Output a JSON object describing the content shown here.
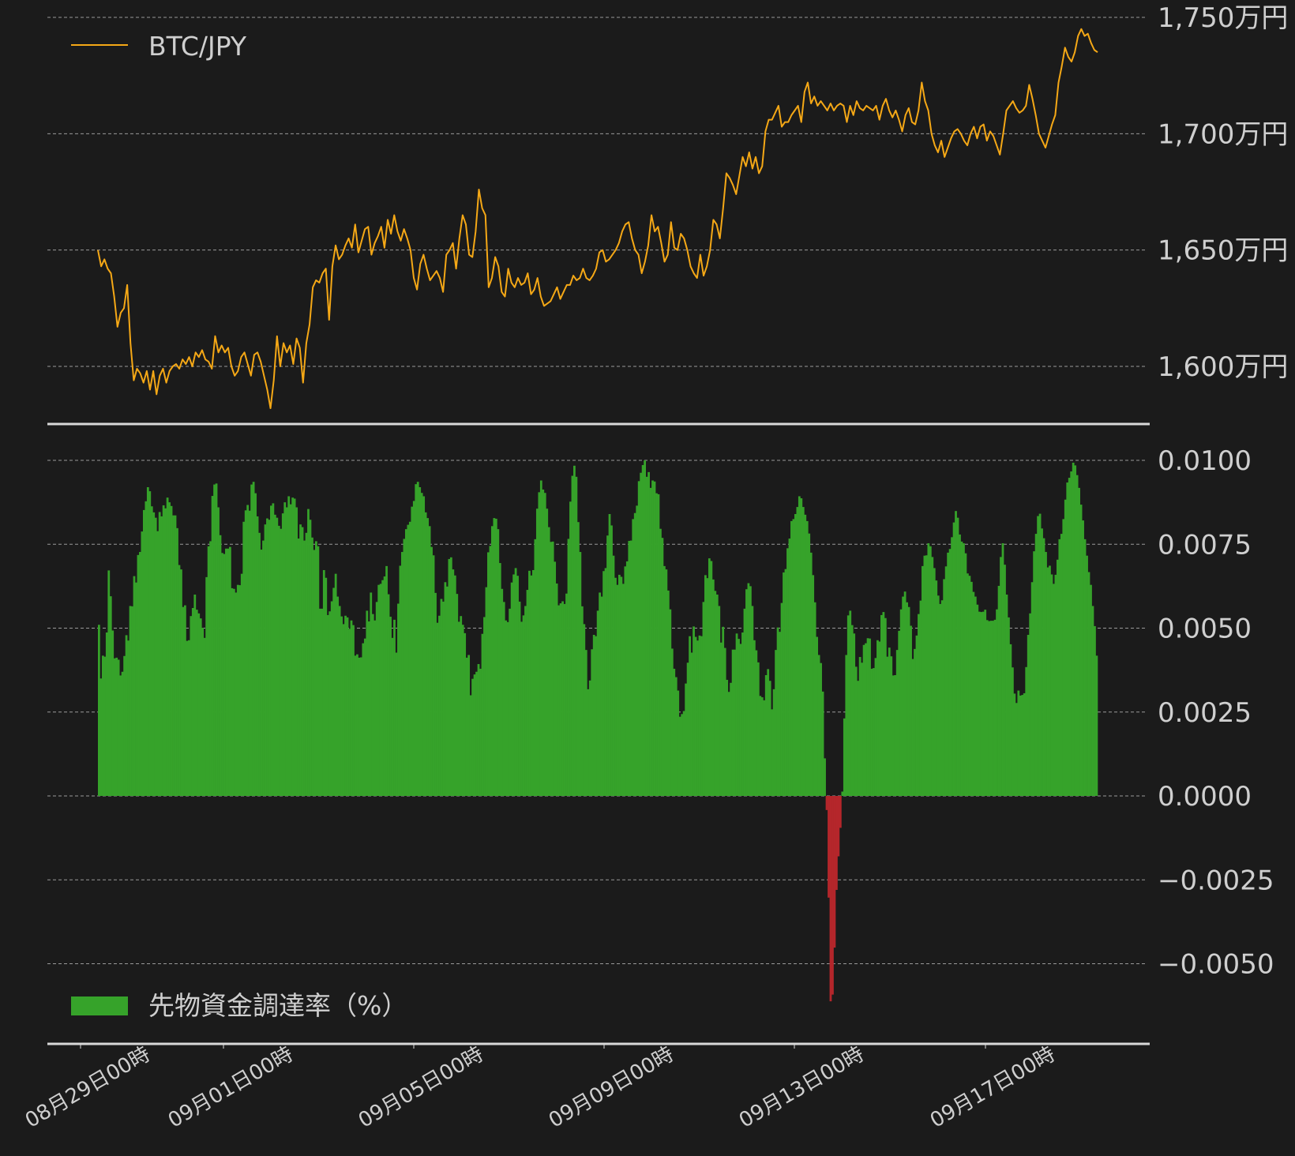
{
  "colors": {
    "background": "#1b1b1b",
    "price_line": "#f5a816",
    "positive_bar": "#36a32a",
    "negative_bar": "#b5262b",
    "axis": "#d8d8d8",
    "text": "#cfcfcf"
  },
  "chart_data": [
    {
      "type": "line",
      "legend": "BTC/JPY",
      "legend_position": "top-left",
      "y_unit": "万円",
      "ylim": [
        1580,
        1750
      ],
      "yticks": [
        1600,
        1650,
        1700,
        1750
      ],
      "ytick_labels": [
        "1,600万円",
        "1,650万円",
        "1,700万円",
        "1,750万円"
      ],
      "grid": true,
      "series": [
        {
          "values": [
            1650,
            1643,
            1646,
            1642,
            1640,
            1630,
            1617,
            1623,
            1625,
            1635,
            1610,
            1594,
            1599,
            1597,
            1593,
            1598,
            1590,
            1598,
            1588,
            1596,
            1599,
            1593,
            1598,
            1600,
            1601,
            1599,
            1603,
            1601,
            1604,
            1600,
            1606,
            1604,
            1607,
            1603,
            1602,
            1599,
            1613,
            1606,
            1609,
            1606,
            1608,
            1600,
            1596,
            1598,
            1604,
            1606,
            1601,
            1596,
            1605,
            1606,
            1602,
            1596,
            1590,
            1582,
            1594,
            1613,
            1600,
            1610,
            1606,
            1609,
            1601,
            1612,
            1608,
            1593,
            1610,
            1618,
            1634,
            1637,
            1636,
            1640,
            1642,
            1620,
            1643,
            1652,
            1646,
            1648,
            1652,
            1655,
            1651,
            1661,
            1649,
            1654,
            1659,
            1660,
            1648,
            1653,
            1656,
            1660,
            1651,
            1663,
            1657,
            1665,
            1658,
            1654,
            1659,
            1655,
            1650,
            1638,
            1633,
            1644,
            1648,
            1642,
            1637,
            1639,
            1641,
            1638,
            1632,
            1648,
            1650,
            1653,
            1642,
            1655,
            1665,
            1661,
            1648,
            1647,
            1658,
            1676,
            1668,
            1665,
            1634,
            1638,
            1647,
            1643,
            1632,
            1630,
            1642,
            1636,
            1634,
            1638,
            1635,
            1636,
            1640,
            1631,
            1633,
            1638,
            1630,
            1626,
            1627,
            1628,
            1631,
            1634,
            1629,
            1632,
            1635,
            1635,
            1639,
            1637,
            1638,
            1642,
            1638,
            1637,
            1639,
            1642,
            1649,
            1650,
            1645,
            1646,
            1648,
            1650,
            1653,
            1658,
            1661,
            1662,
            1655,
            1650,
            1648,
            1640,
            1645,
            1652,
            1665,
            1658,
            1660,
            1653,
            1645,
            1648,
            1662,
            1651,
            1650,
            1657,
            1655,
            1650,
            1643,
            1640,
            1638,
            1648,
            1639,
            1643,
            1650,
            1663,
            1661,
            1655,
            1668,
            1683,
            1681,
            1678,
            1674,
            1682,
            1690,
            1686,
            1692,
            1685,
            1690,
            1683,
            1686,
            1701,
            1706,
            1706,
            1709,
            1712,
            1703,
            1705,
            1705,
            1708,
            1710,
            1712,
            1705,
            1718,
            1722,
            1713,
            1716,
            1712,
            1714,
            1712,
            1710,
            1713,
            1710,
            1712,
            1713,
            1712,
            1705,
            1712,
            1708,
            1714,
            1711,
            1710,
            1712,
            1711,
            1710,
            1712,
            1706,
            1712,
            1715,
            1710,
            1707,
            1710,
            1706,
            1701,
            1708,
            1711,
            1705,
            1704,
            1710,
            1722,
            1714,
            1710,
            1700,
            1695,
            1692,
            1697,
            1690,
            1694,
            1698,
            1701,
            1702,
            1700,
            1697,
            1695,
            1700,
            1703,
            1698,
            1703,
            1704,
            1697,
            1701,
            1699,
            1695,
            1691,
            1700,
            1710,
            1712,
            1714,
            1711,
            1709,
            1710,
            1712,
            1721,
            1715,
            1708,
            1700,
            1697,
            1694,
            1699,
            1704,
            1708,
            1722,
            1729,
            1737,
            1733,
            1731,
            1735,
            1742,
            1745,
            1742,
            1743,
            1739,
            1736,
            1735
          ]
        }
      ]
    },
    {
      "type": "bar",
      "legend": "先物資金調達率（%）",
      "legend_position": "bottom-left",
      "ylim": [
        -0.0065,
        0.0103
      ],
      "yticks": [
        -0.005,
        -0.0025,
        0,
        0.0025,
        0.005,
        0.0075,
        0.01
      ],
      "ytick_labels": [
        "−0.0050",
        "−0.0025",
        "0.0000",
        "0.0025",
        "0.0050",
        "0.0075",
        "0.0100"
      ],
      "grid": true,
      "x_tick_labels": [
        "08月29日00時",
        "09月01日00時",
        "09月05日00時",
        "09月09日00時",
        "09月13日00時",
        "09月17日00時"
      ],
      "series": [
        {
          "values": [
            0.0051,
            0.0035,
            0.00418,
            0.00415,
            0.00487,
            0.00672,
            0.00595,
            0.00493,
            0.0041,
            0.00412,
            0.00406,
            0.00359,
            0.0037,
            0.00417,
            0.00479,
            0.00463,
            0.00566,
            0.00565,
            0.00655,
            0.00636,
            0.00718,
            0.00727,
            0.00788,
            0.00852,
            0.00878,
            0.0092,
            0.00908,
            0.00863,
            0.00845,
            0.00829,
            0.00789,
            0.00846,
            0.00833,
            0.00866,
            0.00857,
            0.00889,
            0.00875,
            0.00864,
            0.00836,
            0.00836,
            0.00798,
            0.00688,
            0.00675,
            0.00563,
            0.00568,
            0.00462,
            0.00464,
            0.00536,
            0.0056,
            0.006,
            0.00555,
            0.00544,
            0.00529,
            0.00501,
            0.00471,
            0.00652,
            0.00744,
            0.00759,
            0.00894,
            0.00928,
            0.00931,
            0.0086,
            0.00777,
            0.00724,
            0.00721,
            0.00737,
            0.00737,
            0.00742,
            0.00619,
            0.00617,
            0.00606,
            0.00629,
            0.00628,
            0.00662,
            0.00817,
            0.00851,
            0.00867,
            0.0085,
            0.00928,
            0.00936,
            0.00902,
            0.00833,
            0.00784,
            0.00734,
            0.00761,
            0.00809,
            0.00827,
            0.00823,
            0.00865,
            0.00872,
            0.00838,
            0.00829,
            0.00805,
            0.00796,
            0.00842,
            0.00875,
            0.0086,
            0.00893,
            0.00869,
            0.00889,
            0.00886,
            0.0086,
            0.00767,
            0.00809,
            0.00801,
            0.00761,
            0.00784,
            0.00855,
            0.00823,
            0.0077,
            0.00733,
            0.00759,
            0.00744,
            0.00558,
            0.00558,
            0.00673,
            0.0065,
            0.00539,
            0.0055,
            0.0058,
            0.0062,
            0.00662,
            0.00594,
            0.00566,
            0.00535,
            0.00512,
            0.00537,
            0.00532,
            0.00498,
            0.00523,
            0.00509,
            0.00418,
            0.00422,
            0.00412,
            0.00413,
            0.00455,
            0.00469,
            0.00552,
            0.0052,
            0.00606,
            0.00542,
            0.00523,
            0.00578,
            0.00629,
            0.00632,
            0.00643,
            0.00654,
            0.00685,
            0.00601,
            0.00534,
            0.00471,
            0.00525,
            0.00427,
            0.00573,
            0.00686,
            0.00727,
            0.00766,
            0.00795,
            0.00808,
            0.00817,
            0.00862,
            0.00879,
            0.00929,
            0.00936,
            0.0092,
            0.00903,
            0.00893,
            0.00845,
            0.00828,
            0.00804,
            0.00742,
            0.00717,
            0.00605,
            0.00516,
            0.00537,
            0.00587,
            0.00579,
            0.00637,
            0.00624,
            0.00706,
            0.00711,
            0.00675,
            0.00657,
            0.00602,
            0.00519,
            0.00536,
            0.0051,
            0.00485,
            0.00412,
            0.0042,
            0.003,
            0.00349,
            0.00362,
            0.0037,
            0.00393,
            0.00379,
            0.00483,
            0.00533,
            0.00622,
            0.00726,
            0.00745,
            0.00804,
            0.00828,
            0.00826,
            0.00795,
            0.00694,
            0.00617,
            0.00578,
            0.00523,
            0.00518,
            0.00558,
            0.00636,
            0.0066,
            0.00679,
            0.00656,
            0.00579,
            0.00519,
            0.00538,
            0.00566,
            0.00614,
            0.00671,
            0.00657,
            0.00673,
            0.00765,
            0.00856,
            0.00905,
            0.0094,
            0.00913,
            0.00903,
            0.00856,
            0.00801,
            0.00757,
            0.00758,
            0.00698,
            0.00633,
            0.00568,
            0.00574,
            0.0058,
            0.00572,
            0.00603,
            0.00766,
            0.00877,
            0.00954,
            0.00984,
            0.00951,
            0.00816,
            0.00727,
            0.00565,
            0.00512,
            0.00435,
            0.00318,
            0.00344,
            0.00437,
            0.0048,
            0.00476,
            0.00552,
            0.00606,
            0.00594,
            0.0067,
            0.00679,
            0.00776,
            0.0084,
            0.00806,
            0.00716,
            0.0065,
            0.00629,
            0.00659,
            0.00653,
            0.00632,
            0.00684,
            0.00699,
            0.0076,
            0.00761,
            0.00825,
            0.00843,
            0.00865,
            0.00938,
            0.00963,
            0.00986,
            0.01,
            0.00951,
            0.00965,
            0.00918,
            0.0094,
            0.00937,
            0.00902,
            0.00899,
            0.00796,
            0.00769,
            0.00685,
            0.00675,
            0.00612,
            0.00556,
            0.00439,
            0.00379,
            0.00354,
            0.00314,
            0.00236,
            0.00244,
            0.00253,
            0.00335,
            0.00397,
            0.00476,
            0.00427,
            0.00505,
            0.00474,
            0.00463,
            0.00478,
            0.00476,
            0.00578,
            0.00658,
            0.00649,
            0.00708,
            0.007,
            0.00645,
            0.00611,
            0.006,
            0.00566,
            0.00457,
            0.00504,
            0.00441,
            0.00346,
            0.0031,
            0.00337,
            0.00436,
            0.00436,
            0.00484,
            0.00468,
            0.00453,
            0.00487,
            0.00558,
            0.00616,
            0.00634,
            0.00625,
            0.00566,
            0.00464,
            0.00434,
            0.00398,
            0.00298,
            0.00294,
            0.00285,
            0.0036,
            0.00378,
            0.00343,
            0.00258,
            0.00318,
            0.00435,
            0.00502,
            0.00489,
            0.00575,
            0.00666,
            0.00676,
            0.00738,
            0.00767,
            0.00819,
            0.00825,
            0.0084,
            0.00861,
            0.00893,
            0.00887,
            0.00861,
            0.00838,
            0.00819,
            0.00782,
            0.00725,
            0.00658,
            0.00577,
            0.00474,
            0.0042,
            0.00396,
            0.00311,
            0.00112,
            -0.00042,
            -0.00303,
            -0.00612,
            -0.00592,
            -0.00452,
            -0.0028,
            -0.0018,
            -0.00095,
            0.00013,
            0.00231,
            0.0042,
            0.00538,
            0.00552,
            0.00509,
            0.00484,
            0.00385,
            0.00343,
            0.00414,
            0.00397,
            0.0045,
            0.00455,
            0.0047,
            0.00469,
            0.00379,
            0.00381,
            0.00411,
            0.00464,
            0.0046,
            0.00539,
            0.00548,
            0.0053,
            0.00415,
            0.00442,
            0.00416,
            0.00359,
            0.0036,
            0.00435,
            0.00492,
            0.00556,
            0.00594,
            0.00609,
            0.00577,
            0.00563,
            0.00507,
            0.00408,
            0.00438,
            0.00478,
            0.00542,
            0.00582,
            0.00685,
            0.00716,
            0.00717,
            0.00753,
            0.00744,
            0.00712,
            0.00679,
            0.00642,
            0.00597,
            0.00572,
            0.00583,
            0.00646,
            0.00684,
            0.00725,
            0.00736,
            0.00771,
            0.00815,
            0.00849,
            0.00829,
            0.00779,
            0.00758,
            0.00753,
            0.00723,
            0.00663,
            0.00656,
            0.00638,
            0.00608,
            0.00594,
            0.0057,
            0.00549,
            0.00548,
            0.00549,
            0.00555,
            0.00524,
            0.00521,
            0.00522,
            0.00522,
            0.00525,
            0.00556,
            0.00626,
            0.00712,
            0.00753,
            0.00689,
            0.006,
            0.00532,
            0.00452,
            0.00383,
            0.00305,
            0.00277,
            0.00314,
            0.00299,
            0.00301,
            0.00306,
            0.00384,
            0.0048,
            0.00544,
            0.00637,
            0.00729,
            0.00781,
            0.00834,
            0.00841,
            0.00797,
            0.00768,
            0.00727,
            0.00681,
            0.00686,
            0.0066,
            0.00632,
            0.00659,
            0.00704,
            0.00765,
            0.00781,
            0.00825,
            0.00883,
            0.00934,
            0.00948,
            0.00967,
            0.00993,
            0.00985,
            0.00956,
            0.00918,
            0.00868,
            0.00821,
            0.00765,
            0.00716,
            0.00667,
            0.00629,
            0.00566,
            0.00506,
            0.00418
          ]
        }
      ]
    }
  ]
}
